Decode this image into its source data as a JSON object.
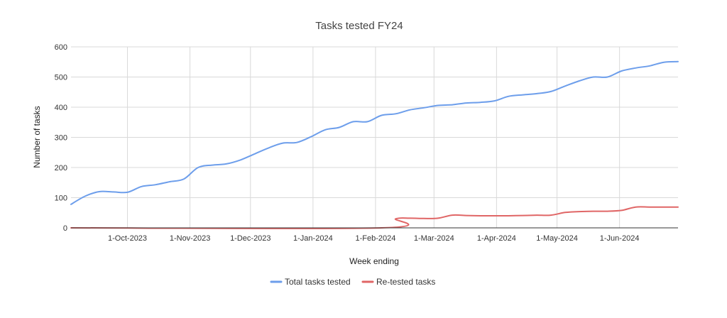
{
  "chart_data": {
    "type": "line",
    "title": "Tasks tested FY24",
    "xlabel": "Week ending",
    "ylabel": "Number of tasks",
    "ylim": [
      0,
      600
    ],
    "yticks": [
      0,
      100,
      200,
      300,
      400,
      500,
      600
    ],
    "xlim": [
      "2023-09-03",
      "2024-06-30"
    ],
    "xticks": [
      {
        "date": "2023-10-01",
        "label": "1-Oct-2023"
      },
      {
        "date": "2023-11-01",
        "label": "1-Nov-2023"
      },
      {
        "date": "2023-12-01",
        "label": "1-Dec-2023"
      },
      {
        "date": "2024-01-01",
        "label": "1-Jan-2024"
      },
      {
        "date": "2024-02-01",
        "label": "1-Feb-2024"
      },
      {
        "date": "2024-03-01",
        "label": "1-Mar-2024"
      },
      {
        "date": "2024-04-01",
        "label": "1-Apr-2024"
      },
      {
        "date": "2024-05-01",
        "label": "1-May-2024"
      },
      {
        "date": "2024-06-01",
        "label": "1-Jun-2024"
      }
    ],
    "grid": true,
    "legend": "bottom",
    "series": [
      {
        "name": "Total tasks tested",
        "color": "#6d9eeb",
        "x": [
          "2023-09-03",
          "2023-09-10",
          "2023-09-17",
          "2023-09-24",
          "2023-10-01",
          "2023-10-08",
          "2023-10-15",
          "2023-10-22",
          "2023-10-29",
          "2023-11-05",
          "2023-11-12",
          "2023-11-19",
          "2023-11-26",
          "2023-12-03",
          "2023-12-10",
          "2023-12-17",
          "2023-12-24",
          "2023-12-31",
          "2024-01-07",
          "2024-01-14",
          "2024-01-21",
          "2024-01-28",
          "2024-02-04",
          "2024-02-11",
          "2024-02-18",
          "2024-02-25",
          "2024-03-03",
          "2024-03-10",
          "2024-03-17",
          "2024-03-24",
          "2024-03-31",
          "2024-04-07",
          "2024-04-14",
          "2024-04-21",
          "2024-04-28",
          "2024-05-05",
          "2024-05-12",
          "2024-05-19",
          "2024-05-26",
          "2024-06-02",
          "2024-06-09",
          "2024-06-16",
          "2024-06-23",
          "2024-06-30"
        ],
        "values": [
          78,
          105,
          120,
          119,
          118,
          137,
          143,
          153,
          162,
          200,
          208,
          212,
          225,
          245,
          265,
          281,
          283,
          302,
          325,
          333,
          352,
          352,
          373,
          378,
          391,
          398,
          406,
          408,
          414,
          416,
          421,
          436,
          441,
          445,
          452,
          470,
          487,
          500,
          500,
          520,
          530,
          537,
          549,
          551
        ]
      },
      {
        "name": "Re-tested tasks",
        "color": "#e06666",
        "x": [
          "2023-09-03",
          "2024-02-04",
          "2024-02-11",
          "2024-02-18",
          "2024-02-25",
          "2024-03-03",
          "2024-03-10",
          "2024-03-17",
          "2024-03-24",
          "2024-03-31",
          "2024-04-07",
          "2024-04-14",
          "2024-04-21",
          "2024-04-28",
          "2024-05-05",
          "2024-05-12",
          "2024-05-19",
          "2024-05-26",
          "2024-06-02",
          "2024-06-09",
          "2024-06-16",
          "2024-06-23",
          "2024-06-30"
        ],
        "values": [
          0,
          0,
          30,
          32,
          31,
          32,
          42,
          41,
          40,
          40,
          40,
          41,
          42,
          42,
          51,
          54,
          55,
          55,
          58,
          69,
          69,
          69,
          69
        ]
      }
    ]
  }
}
